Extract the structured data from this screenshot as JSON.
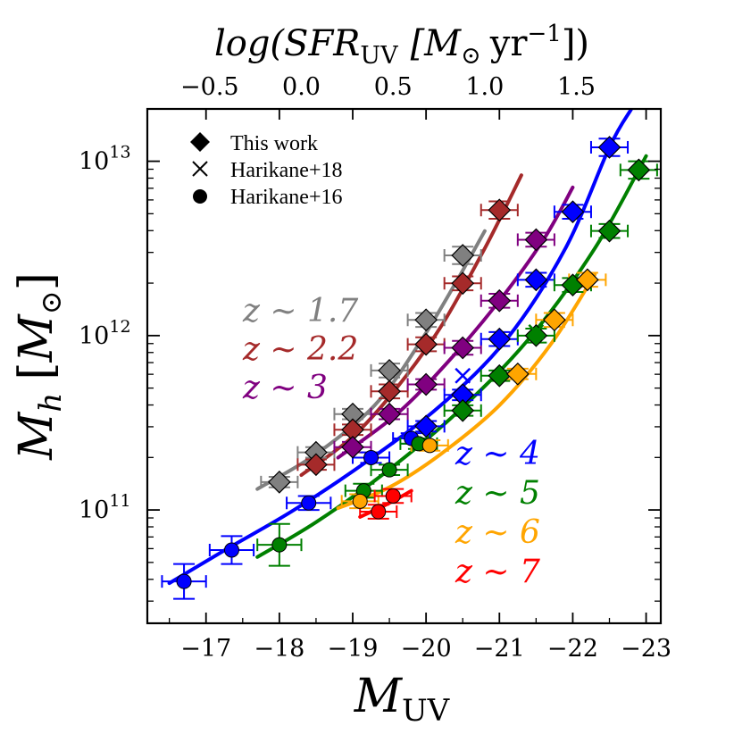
{
  "chart_data": {
    "type": "scatter",
    "xlabel": "M",
    "xlabel_sub": "UV",
    "ylabel": "M",
    "ylabel_sub": "h",
    "ylabel_unit_open": "[",
    "ylabel_unit": "M",
    "ylabel_unit_sub": "⊙",
    "ylabel_unit_close": "]",
    "top_label": "log(SFR",
    "top_label_sub": "UV",
    "top_label_unit": "[M",
    "top_label_unit_sub": "⊙",
    "top_label_unit_yr": "yr",
    "top_label_unit_sup": "−1",
    "top_label_close": "])",
    "xlim": [
      -16.2,
      -23.2
    ],
    "ylim_log10": [
      10.35,
      13.3
    ],
    "x_ticks": [
      -17,
      -18,
      -19,
      -20,
      -21,
      -22,
      -23
    ],
    "x_tick_labels": [
      "−17",
      "−18",
      "−19",
      "−20",
      "−21",
      "−22",
      "−23"
    ],
    "y_ticks_log10": [
      11,
      12,
      13
    ],
    "y_tick_base": "10",
    "y_tick_exps": [
      "11",
      "12",
      "13"
    ],
    "top_ticks_sfr": [
      -0.5,
      0.0,
      0.5,
      1.0,
      1.5
    ],
    "top_tick_labels": [
      "−0.5",
      "0.0",
      "0.5",
      "1.0",
      "1.5"
    ],
    "sfr_muv_relation": {
      "muv_at_sfr0": -18.3,
      "muv_per_dex": -2.5
    },
    "legend": [
      {
        "marker": "diamond",
        "label": "This work"
      },
      {
        "marker": "cross",
        "label": "Harikane+18"
      },
      {
        "marker": "circle",
        "label": "Harikane+16"
      }
    ],
    "series": [
      {
        "name": "z ~ 1.7",
        "label": "z ∼ 1.7",
        "color": "#808080",
        "curve": [
          [
            -17.7,
            11.12
          ],
          [
            -18.5,
            11.32
          ],
          [
            -19.3,
            11.6
          ],
          [
            -19.9,
            11.95
          ],
          [
            -20.4,
            12.3
          ],
          [
            -20.8,
            12.6
          ]
        ],
        "diamonds": [
          {
            "x": -18.0,
            "y": 11.16,
            "xerr": 0.25,
            "yerr": 0.03
          },
          {
            "x": -18.5,
            "y": 11.33,
            "xerr": 0.25,
            "yerr": 0.03
          },
          {
            "x": -19.0,
            "y": 11.55,
            "xerr": 0.25,
            "yerr": 0.03
          },
          {
            "x": -19.5,
            "y": 11.8,
            "xerr": 0.25,
            "yerr": 0.04
          },
          {
            "x": -20.0,
            "y": 12.09,
            "xerr": 0.25,
            "yerr": 0.04
          },
          {
            "x": -20.5,
            "y": 12.46,
            "xerr": 0.25,
            "yerr": 0.05
          }
        ],
        "crosses": [],
        "circles": []
      },
      {
        "name": "z ~ 2.2",
        "label": "z ∼ 2.2",
        "color": "#a52a2a",
        "curve": [
          [
            -18.3,
            11.2
          ],
          [
            -19.0,
            11.42
          ],
          [
            -19.6,
            11.7
          ],
          [
            -20.2,
            12.05
          ],
          [
            -20.8,
            12.5
          ],
          [
            -21.3,
            12.92
          ]
        ],
        "diamonds": [
          {
            "x": -18.5,
            "y": 11.26,
            "xerr": 0.25,
            "yerr": 0.03
          },
          {
            "x": -19.0,
            "y": 11.46,
            "xerr": 0.25,
            "yerr": 0.03
          },
          {
            "x": -19.5,
            "y": 11.68,
            "xerr": 0.25,
            "yerr": 0.04
          },
          {
            "x": -20.0,
            "y": 11.95,
            "xerr": 0.25,
            "yerr": 0.04
          },
          {
            "x": -20.5,
            "y": 12.3,
            "xerr": 0.25,
            "yerr": 0.04
          },
          {
            "x": -21.0,
            "y": 12.72,
            "xerr": 0.25,
            "yerr": 0.05
          }
        ],
        "crosses": [],
        "circles": []
      },
      {
        "name": "z ~ 3",
        "label": "z ∼ 3",
        "color": "#800080",
        "curve": [
          [
            -18.8,
            11.3
          ],
          [
            -19.6,
            11.55
          ],
          [
            -20.3,
            11.85
          ],
          [
            -21.0,
            12.2
          ],
          [
            -21.6,
            12.55
          ],
          [
            -22.0,
            12.85
          ]
        ],
        "diamonds": [
          {
            "x": -19.0,
            "y": 11.36,
            "xerr": 0.25,
            "yerr": 0.03
          },
          {
            "x": -19.5,
            "y": 11.55,
            "xerr": 0.25,
            "yerr": 0.03
          },
          {
            "x": -20.0,
            "y": 11.72,
            "xerr": 0.25,
            "yerr": 0.03
          },
          {
            "x": -20.5,
            "y": 11.93,
            "xerr": 0.25,
            "yerr": 0.04
          },
          {
            "x": -21.0,
            "y": 12.2,
            "xerr": 0.25,
            "yerr": 0.04
          },
          {
            "x": -21.5,
            "y": 12.55,
            "xerr": 0.25,
            "yerr": 0.04
          }
        ],
        "crosses": [],
        "circles": []
      },
      {
        "name": "z ~ 4",
        "label": "z ∼ 4",
        "color": "#0000ff",
        "curve": [
          [
            -16.5,
            10.58
          ],
          [
            -17.3,
            10.78
          ],
          [
            -18.2,
            11.0
          ],
          [
            -19.2,
            11.28
          ],
          [
            -20.2,
            11.6
          ],
          [
            -21.1,
            11.98
          ],
          [
            -21.9,
            12.5
          ],
          [
            -22.5,
            13.08
          ],
          [
            -22.8,
            13.3
          ]
        ],
        "diamonds": [
          {
            "x": -20.0,
            "y": 11.48,
            "xerr": 0.25,
            "yerr": 0.03
          },
          {
            "x": -20.5,
            "y": 11.66,
            "xerr": 0.25,
            "yerr": 0.03
          },
          {
            "x": -21.0,
            "y": 11.98,
            "xerr": 0.25,
            "yerr": 0.04
          },
          {
            "x": -21.5,
            "y": 12.32,
            "xerr": 0.25,
            "yerr": 0.04
          },
          {
            "x": -22.0,
            "y": 12.71,
            "xerr": 0.25,
            "yerr": 0.04
          },
          {
            "x": -22.5,
            "y": 13.08,
            "xerr": 0.25,
            "yerr": 0.05
          }
        ],
        "crosses": [
          {
            "x": -20.5,
            "y": 11.77
          }
        ],
        "circles": [
          {
            "x": -16.7,
            "y": 10.59,
            "xerr": 0.3,
            "yerr": 0.1
          },
          {
            "x": -17.35,
            "y": 10.77,
            "xerr": 0.3,
            "yerr": 0.08
          },
          {
            "x": -18.4,
            "y": 11.04,
            "xerr": 0.3,
            "yerr": 0.04
          },
          {
            "x": -19.25,
            "y": 11.3,
            "xerr": 0.25,
            "yerr": 0.03
          },
          {
            "x": -19.8,
            "y": 11.41,
            "xerr": 0.25,
            "yerr": 0.03
          }
        ]
      },
      {
        "name": "z ~ 5",
        "label": "z ∼ 5",
        "color": "#008000",
        "curve": [
          [
            -17.7,
            10.73
          ],
          [
            -18.5,
            10.93
          ],
          [
            -19.4,
            11.2
          ],
          [
            -20.4,
            11.55
          ],
          [
            -21.4,
            11.98
          ],
          [
            -22.3,
            12.5
          ],
          [
            -23.0,
            13.03
          ]
        ],
        "diamonds": [
          {
            "x": -20.5,
            "y": 11.57,
            "xerr": 0.25,
            "yerr": 0.03
          },
          {
            "x": -21.0,
            "y": 11.77,
            "xerr": 0.25,
            "yerr": 0.03
          },
          {
            "x": -21.5,
            "y": 12.0,
            "xerr": 0.25,
            "yerr": 0.04
          },
          {
            "x": -22.0,
            "y": 12.29,
            "xerr": 0.25,
            "yerr": 0.04
          },
          {
            "x": -22.5,
            "y": 12.6,
            "xerr": 0.25,
            "yerr": 0.04
          },
          {
            "x": -22.9,
            "y": 12.95,
            "xerr": 0.25,
            "yerr": 0.05
          }
        ],
        "crosses": [
          {
            "x": -21.5,
            "y": 12.02
          }
        ],
        "circles": [
          {
            "x": -18.0,
            "y": 10.8,
            "xerr": 0.3,
            "yerr": 0.12
          },
          {
            "x": -19.15,
            "y": 11.11,
            "xerr": 0.25,
            "yerr": 0.04
          },
          {
            "x": -19.5,
            "y": 11.23,
            "xerr": 0.25,
            "yerr": 0.03
          },
          {
            "x": -19.9,
            "y": 11.38,
            "xerr": 0.25,
            "yerr": 0.03
          }
        ]
      },
      {
        "name": "z ~ 6",
        "label": "z ∼ 6",
        "color": "#ffa500",
        "curve": [
          [
            -18.8,
            11.01
          ],
          [
            -19.5,
            11.13
          ],
          [
            -20.2,
            11.32
          ],
          [
            -21.0,
            11.6
          ],
          [
            -21.7,
            11.95
          ],
          [
            -22.3,
            12.35
          ]
        ],
        "diamonds": [
          {
            "x": -21.25,
            "y": 11.78,
            "xerr": 0.25,
            "yerr": 0.03
          },
          {
            "x": -21.75,
            "y": 12.09,
            "xerr": 0.25,
            "yerr": 0.04
          },
          {
            "x": -22.2,
            "y": 12.32,
            "xerr": 0.25,
            "yerr": 0.04
          }
        ],
        "crosses": [],
        "circles": [
          {
            "x": -19.1,
            "y": 11.05,
            "xerr": 0.25,
            "yerr": 0.04
          },
          {
            "x": -20.05,
            "y": 11.37,
            "xerr": 0.25,
            "yerr": 0.03
          }
        ]
      },
      {
        "name": "z ~ 7",
        "label": "z ∼ 7",
        "color": "#ff0000",
        "curve": [
          [
            -19.1,
            10.96
          ],
          [
            -19.5,
            11.04
          ],
          [
            -19.8,
            11.11
          ]
        ],
        "diamonds": [],
        "crosses": [],
        "circles": [
          {
            "x": -19.35,
            "y": 10.99,
            "xerr": 0.25,
            "yerr": 0.04
          },
          {
            "x": -19.55,
            "y": 11.08,
            "xerr": 0.25,
            "yerr": 0.04
          }
        ]
      }
    ]
  }
}
